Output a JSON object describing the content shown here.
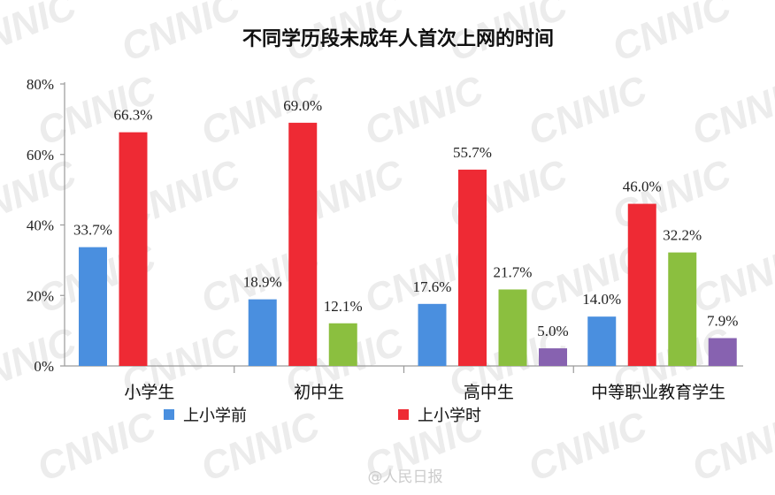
{
  "watermark": "CNNIC",
  "credit": "@人民日报",
  "chart_data": {
    "type": "bar",
    "title": "不同学历段未成年人首次上网的时间",
    "categories": [
      "小学生",
      "初中生",
      "高中生",
      "中等职业教育学生"
    ],
    "series": [
      {
        "name": "上小学前",
        "color": "#4a8fdf",
        "values": [
          33.7,
          18.9,
          17.6,
          14.0
        ]
      },
      {
        "name": "上小学时",
        "color": "#ee2a34",
        "values": [
          66.3,
          69.0,
          55.7,
          46.0
        ]
      },
      {
        "color": "#8bbf3f",
        "values": [
          null,
          12.1,
          21.7,
          32.2
        ]
      },
      {
        "color": "#8762b0",
        "values": [
          null,
          null,
          5.0,
          7.9
        ]
      }
    ],
    "ylim": [
      0,
      80
    ],
    "yticks": [
      "0%",
      "20%",
      "40%",
      "60%",
      "80%"
    ],
    "value_suffix": "%",
    "grid": false,
    "legend_position": "bottom"
  }
}
